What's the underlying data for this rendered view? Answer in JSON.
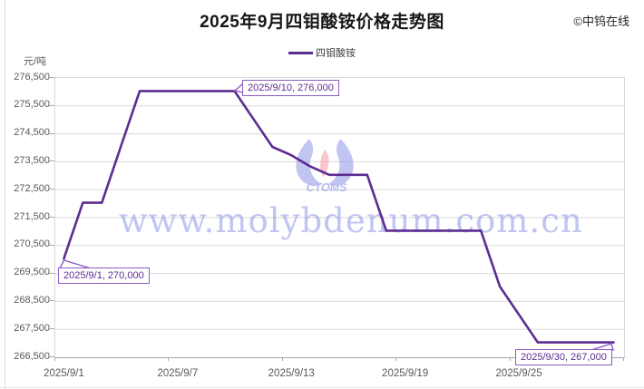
{
  "header": {
    "title": "2025年9月四钼酸铵价格走势图",
    "copyright": "©中钨在线"
  },
  "legend": {
    "series_label": "四钼酸铵"
  },
  "axes": {
    "unit_label": "元/吨",
    "y_ticks": [
      "276,500",
      "275,500",
      "274,500",
      "273,500",
      "272,500",
      "271,500",
      "270,500",
      "269,500",
      "268,500",
      "267,500",
      "266,500"
    ],
    "x_ticks": [
      {
        "label": "2025/9/1",
        "day_index": 0
      },
      {
        "label": "2025/9/7",
        "day_index": 6
      },
      {
        "label": "2025/9/13",
        "day_index": 12
      },
      {
        "label": "2025/9/19",
        "day_index": 18
      },
      {
        "label": "2025/9/25",
        "day_index": 24
      }
    ]
  },
  "chart_data": {
    "type": "line",
    "title": "2025年9月四钼酸铵价格走势图",
    "xlabel": "",
    "ylabel": "元/吨",
    "ylim": [
      266500,
      276500
    ],
    "grid": true,
    "legend_position": "top",
    "x": [
      "2025/9/1",
      "2025/9/2",
      "2025/9/3",
      "2025/9/4",
      "2025/9/5",
      "2025/9/6",
      "2025/9/7",
      "2025/9/8",
      "2025/9/9",
      "2025/9/10",
      "2025/9/11",
      "2025/9/12",
      "2025/9/13",
      "2025/9/14",
      "2025/9/15",
      "2025/9/16",
      "2025/9/17",
      "2025/9/18",
      "2025/9/19",
      "2025/9/20",
      "2025/9/21",
      "2025/9/22",
      "2025/9/23",
      "2025/9/24",
      "2025/9/25",
      "2025/9/26",
      "2025/9/27",
      "2025/9/28",
      "2025/9/29",
      "2025/9/30"
    ],
    "series": [
      {
        "name": "四钼酸铵",
        "values": [
          270000,
          272000,
          272000,
          274000,
          276000,
          276000,
          276000,
          276000,
          276000,
          276000,
          275000,
          274000,
          273700,
          273300,
          273000,
          273000,
          273000,
          271000,
          271000,
          271000,
          271000,
          271000,
          271000,
          269000,
          268000,
          267000,
          267000,
          267000,
          267000,
          267000
        ]
      }
    ],
    "annotations": [
      {
        "label": "2025/9/1, 270,000",
        "date": "2025/9/1",
        "value": 270000
      },
      {
        "label": "2025/9/10, 276,000",
        "date": "2025/9/10",
        "value": 276000
      },
      {
        "label": "2025/9/30, 267,000",
        "date": "2025/9/30",
        "value": 267000
      }
    ]
  },
  "watermark": {
    "url_text": "www.molybdenum.com.cn",
    "logo_text": "CTOMS"
  },
  "colors": {
    "line": "#5c2d91",
    "annotation_border": "#8e5bc4",
    "annotation_text": "#5c2d91",
    "grid": "#d9d9d9",
    "axis_text": "#595959",
    "watermark_blue": "#8d97e8",
    "watermark_pink": "#f59ca6"
  }
}
